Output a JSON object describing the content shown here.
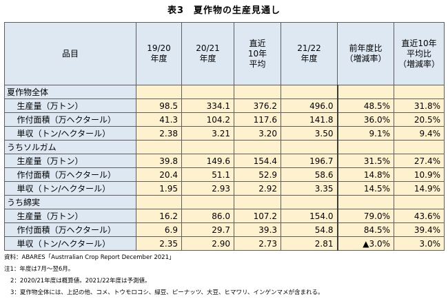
{
  "title": "表3　夏作物の生産見通し",
  "headers": {
    "item": "品目",
    "y1920": [
      "19/20",
      "年度"
    ],
    "y2021": [
      "20/21",
      "年度"
    ],
    "avg10": [
      "直近",
      "10年",
      "平均"
    ],
    "y2122": [
      "21/22",
      "年度"
    ],
    "yoy": [
      "前年度比",
      "（増減率）"
    ],
    "vs10": [
      "直近10年",
      "平均比",
      "（増減率）"
    ]
  },
  "groups": [
    {
      "name": "夏作物全体",
      "rows": [
        {
          "label": "生産量（万トン）",
          "values": [
            "98.5",
            "334.1",
            "376.2",
            "496.0",
            "48.5%",
            "31.8%"
          ]
        },
        {
          "label": "作付面積（万ヘクタール）",
          "values": [
            "41.3",
            "104.2",
            "117.6",
            "141.8",
            "36.0%",
            "20.5%"
          ]
        },
        {
          "label": "単収（トン/ヘクタール）",
          "values": [
            "2.38",
            "3.21",
            "3.20",
            "3.50",
            "9.1%",
            "9.4%"
          ]
        }
      ]
    },
    {
      "name": "うちソルガム",
      "rows": [
        {
          "label": "生産量（万トン）",
          "values": [
            "39.8",
            "149.6",
            "154.4",
            "196.7",
            "31.5%",
            "27.4%"
          ]
        },
        {
          "label": "作付面積（万ヘクタール）",
          "values": [
            "20.4",
            "51.1",
            "52.9",
            "58.6",
            "14.8%",
            "10.9%"
          ]
        },
        {
          "label": "単収（トン/ヘクタール）",
          "values": [
            "1.95",
            "2.93",
            "2.92",
            "3.35",
            "14.5%",
            "14.9%"
          ]
        }
      ]
    },
    {
      "name": "うち綿実",
      "rows": [
        {
          "label": "生産量（万トン）",
          "values": [
            "16.2",
            "86.0",
            "107.2",
            "154.0",
            "79.0%",
            "43.6%"
          ]
        },
        {
          "label": "作付面積（万ヘクタール）",
          "values": [
            "6.9",
            "29.7",
            "39.3",
            "54.8",
            "84.5%",
            "39.4%"
          ]
        },
        {
          "label": "単収（トン/ヘクタール）",
          "values": [
            "2.35",
            "2.90",
            "2.73",
            "2.81",
            "▲3.0%",
            "3.0%"
          ]
        }
      ]
    }
  ],
  "notes": {
    "source": "資料：ABARES「Austrralian Crop Report December 2021」",
    "note1": "注1：年度は7月～翌6月。",
    "note2": "2：2020/21年度は概算値。2021/22年度は予測値。",
    "note3": "3：夏作物全体には、上記の他、コメ、トウモロコシ、緑豆、ピーナッツ、大豆、ヒマワリ、インゲンマメが含まれる。"
  }
}
